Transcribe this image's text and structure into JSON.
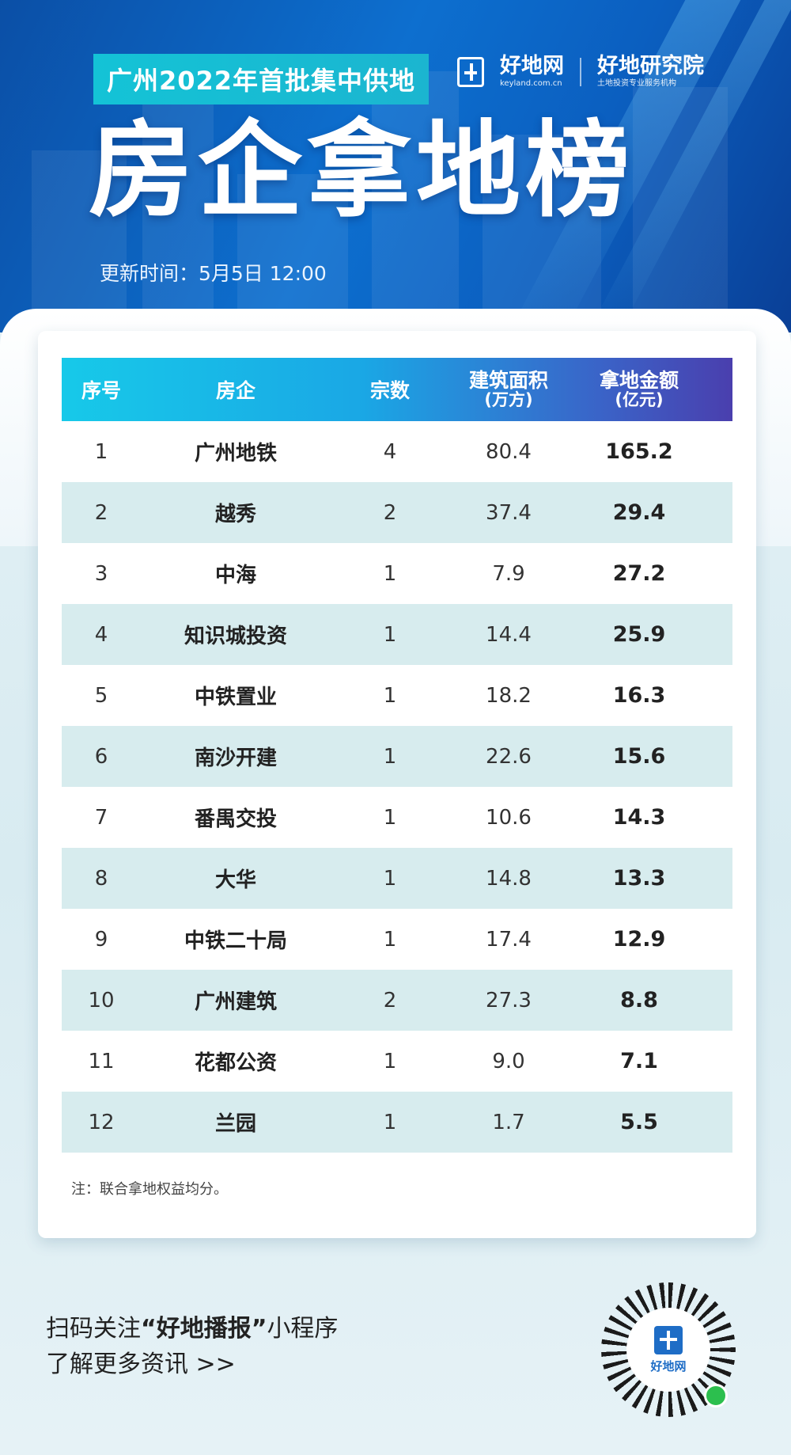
{
  "header": {
    "subtitle": "广州2022年首批集中供地",
    "logo1_name": "好地网",
    "logo1_domain": "keyland.com.cn",
    "logo2_name": "好地研究院",
    "logo2_tagline": "土地投资专业服务机构",
    "title": "房企拿地榜",
    "update_time": "更新时间：5月5日 12:00"
  },
  "table": {
    "headers": {
      "rank": "序号",
      "company": "房企",
      "deals": "宗数",
      "area": "建筑面积",
      "area_unit": "(万方)",
      "amount": "拿地金额",
      "amount_unit": "(亿元)"
    },
    "rows": [
      {
        "rank": "1",
        "company": "广州地铁",
        "deals": "4",
        "area": "80.4",
        "amount": "165.2"
      },
      {
        "rank": "2",
        "company": "越秀",
        "deals": "2",
        "area": "37.4",
        "amount": "29.4"
      },
      {
        "rank": "3",
        "company": "中海",
        "deals": "1",
        "area": "7.9",
        "amount": "27.2"
      },
      {
        "rank": "4",
        "company": "知识城投资",
        "deals": "1",
        "area": "14.4",
        "amount": "25.9"
      },
      {
        "rank": "5",
        "company": "中铁置业",
        "deals": "1",
        "area": "18.2",
        "amount": "16.3"
      },
      {
        "rank": "6",
        "company": "南沙开建",
        "deals": "1",
        "area": "22.6",
        "amount": "15.6"
      },
      {
        "rank": "7",
        "company": "番禺交投",
        "deals": "1",
        "area": "10.6",
        "amount": "14.3"
      },
      {
        "rank": "8",
        "company": "大华",
        "deals": "1",
        "area": "14.8",
        "amount": "13.3"
      },
      {
        "rank": "9",
        "company": "中铁二十局",
        "deals": "1",
        "area": "17.4",
        "amount": "12.9"
      },
      {
        "rank": "10",
        "company": "广州建筑",
        "deals": "2",
        "area": "27.3",
        "amount": "8.8"
      },
      {
        "rank": "11",
        "company": "花都公资",
        "deals": "1",
        "area": "9.0",
        "amount": "7.1"
      },
      {
        "rank": "12",
        "company": "兰园",
        "deals": "1",
        "area": "1.7",
        "amount": "5.5"
      }
    ],
    "note": "注：联合拿地权益均分。"
  },
  "footer": {
    "line1_prefix": "扫码关注",
    "line1_highlight": "“好地播报”",
    "line1_suffix": "小程序",
    "line2": "了解更多资讯  >>",
    "qr_label": "好地网"
  },
  "colors": {
    "hero_blue": "#0d6fcf",
    "accent_cyan": "#14c3d6",
    "row_alt": "#d7ecee",
    "header_gradient_end": "#4a3fae"
  }
}
